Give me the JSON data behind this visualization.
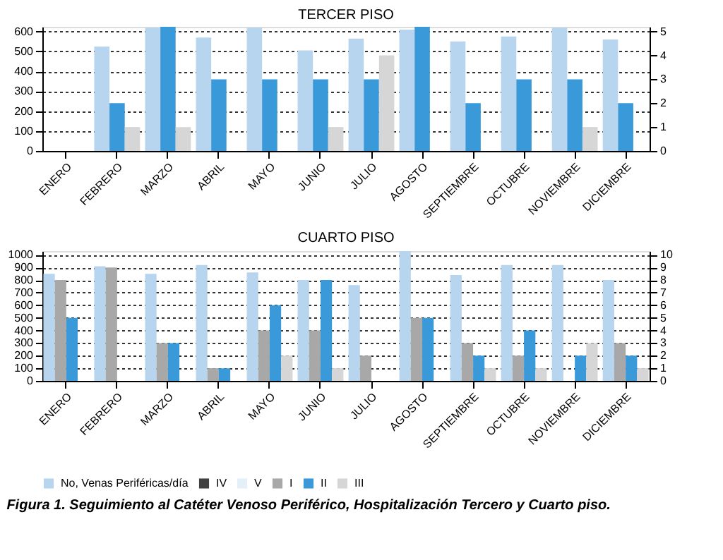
{
  "chart_data": [
    {
      "type": "bar",
      "title": "TERCER PISO",
      "categories": [
        "ENERO",
        "FEBRERO",
        "MARZO",
        "ABRIL",
        "MAYO",
        "JUNIO",
        "JULIO",
        "AGOSTO",
        "SEPTIEMBRE",
        "OCTUBRE",
        "NOVIEMBRE",
        "DICIEMBRE"
      ],
      "series": [
        {
          "name": "No, Venas Periféricas/día",
          "color": "#b7d5ee",
          "values": [
            null,
            525,
            620,
            570,
            620,
            505,
            565,
            610,
            550,
            575,
            620,
            560
          ]
        },
        {
          "name": "II",
          "color": "#3a9ad9",
          "axis": "y2",
          "values": [
            null,
            2,
            5.2,
            3,
            3,
            3,
            3,
            5.2,
            2,
            3,
            3,
            2
          ]
        },
        {
          "name": "III",
          "color": "#d6d6d6",
          "axis": "y2",
          "values": [
            null,
            1,
            1,
            null,
            null,
            1,
            4,
            null,
            null,
            null,
            1,
            null
          ]
        }
      ],
      "ylim": [
        0,
        624
      ],
      "yticks": [
        0,
        100,
        200,
        300,
        400,
        500,
        600
      ],
      "y2lim": [
        0,
        5.2
      ],
      "y2ticks": [
        0,
        1,
        2,
        3,
        4,
        5
      ],
      "grid": "y",
      "legend": "bottom"
    },
    {
      "type": "bar",
      "title": "CUARTO PISO",
      "categories": [
        "ENERO",
        "FEBRERO",
        "MARZO",
        "ABRIL",
        "MAYO",
        "JUNIO",
        "JULIO",
        "AGOSTO",
        "SEPTIEMBRE",
        "OCTUBRE",
        "NOVIEMBRE",
        "DICIEMBRE"
      ],
      "series": [
        {
          "name": "No, Venas Periféricas/día",
          "color": "#b7d5ee",
          "values": [
            850,
            910,
            850,
            920,
            860,
            800,
            760,
            1030,
            840,
            920,
            920,
            800
          ]
        },
        {
          "name": "IV",
          "color": "#404040",
          "axis": "y2",
          "values": [
            null,
            null,
            null,
            null,
            null,
            null,
            null,
            null,
            null,
            null,
            null,
            null
          ]
        },
        {
          "name": "V",
          "color": "#e3eff9",
          "axis": "y2",
          "values": [
            null,
            null,
            null,
            null,
            null,
            null,
            null,
            null,
            null,
            null,
            null,
            null
          ]
        },
        {
          "name": "I",
          "color": "#a8a8a8",
          "axis": "y2",
          "values": [
            8,
            9,
            3,
            1,
            4,
            4,
            2,
            5,
            3,
            2,
            null,
            3
          ]
        },
        {
          "name": "II",
          "color": "#3a9ad9",
          "axis": "y2",
          "values": [
            5,
            null,
            3,
            1,
            6,
            8,
            null,
            5,
            2,
            4,
            2,
            2
          ]
        },
        {
          "name": "III",
          "color": "#d6d6d6",
          "axis": "y2",
          "values": [
            null,
            null,
            null,
            null,
            2,
            1,
            null,
            null,
            1,
            1,
            3,
            1
          ]
        }
      ],
      "ylim": [
        0,
        1030
      ],
      "yticks": [
        0,
        100,
        200,
        300,
        400,
        500,
        600,
        700,
        800,
        900,
        1000
      ],
      "y2lim": [
        0,
        10.3
      ],
      "y2ticks": [
        0,
        1,
        2,
        3,
        4,
        5,
        6,
        7,
        8,
        9,
        10
      ],
      "grid": "y",
      "legend": "bottom",
      "annotations": [
        "Figura 1. Seguimiento al Catéter Venoso Periférico, Hospitalización Tercero y Cuarto piso."
      ]
    }
  ]
}
